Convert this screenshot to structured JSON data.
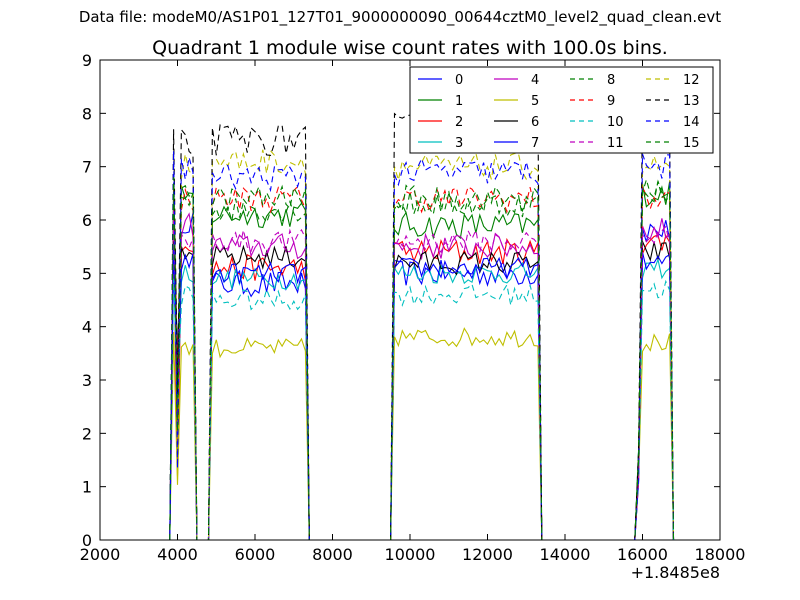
{
  "header": {
    "data_file": "Data file: modeM0/AS1P01_127T01_9000000090_00644cztM0_level2_quad_clean.evt"
  },
  "chart_data": {
    "type": "line",
    "title": "Quadrant 1 module wise count rates with 100.0s bins.",
    "xlabel": "",
    "ylabel": "",
    "xlim": [
      2000,
      18000
    ],
    "ylim": [
      0,
      9
    ],
    "x_offset_label": "+1.8485e8",
    "x_ticks": [
      2000,
      4000,
      6000,
      8000,
      10000,
      12000,
      14000,
      16000,
      18000
    ],
    "y_ticks": [
      0,
      1,
      2,
      3,
      4,
      5,
      6,
      7,
      8,
      9
    ],
    "legend_location": "top-right",
    "gti_segments": [
      {
        "x": [
          3900,
          4000,
          4100,
          4200,
          4300,
          4400
        ]
      },
      {
        "x": [
          4900,
          5000,
          5100,
          5200,
          5300,
          5400,
          5500,
          5600,
          5700,
          5800,
          5900,
          6000,
          6100,
          6200,
          6300,
          6400,
          6500,
          6600,
          6700,
          6800,
          6900,
          7000,
          7100,
          7200,
          7300
        ]
      },
      {
        "x": [
          9600,
          9700,
          9800,
          9900,
          10000,
          10100,
          10200,
          10300,
          10400,
          10500,
          10600,
          10700,
          10800,
          10900,
          11000,
          11100,
          11200,
          11300,
          11400,
          11500,
          11600,
          11700,
          11800,
          11900,
          12000,
          12100,
          12200,
          12300,
          12400,
          12500,
          12600,
          12700,
          12800,
          12900,
          13000,
          13100,
          13200,
          13300
        ]
      },
      {
        "x": [
          15900,
          16000,
          16100,
          16200,
          16300,
          16400,
          16500,
          16600,
          16700
        ]
      }
    ],
    "series": [
      {
        "name": "0",
        "color": "#0000ff",
        "dash": "solid",
        "levels": [
          6.0,
          4.8,
          5.0,
          4.8,
          5.8
        ],
        "noise": 0.25
      },
      {
        "name": "1",
        "color": "#008000",
        "dash": "solid",
        "levels": [
          6.4,
          6.1,
          5.9,
          6.0,
          6.5
        ],
        "noise": 0.25
      },
      {
        "name": "2",
        "color": "#ff0000",
        "dash": "solid",
        "levels": [
          5.6,
          5.1,
          5.4,
          5.1,
          5.6
        ],
        "noise": 0.25
      },
      {
        "name": "3",
        "color": "#00bfbf",
        "dash": "solid",
        "levels": [
          5.0,
          4.9,
          5.0,
          4.7,
          5.1
        ],
        "noise": 0.2
      },
      {
        "name": "4",
        "color": "#bf00bf",
        "dash": "solid",
        "levels": [
          5.9,
          5.5,
          5.5,
          5.4,
          5.8
        ],
        "noise": 0.25
      },
      {
        "name": "5",
        "color": "#bfbf00",
        "dash": "solid",
        "levels": [
          3.6,
          3.6,
          3.8,
          3.6,
          3.7
        ],
        "noise": 0.18
      },
      {
        "name": "6",
        "color": "#000000",
        "dash": "solid",
        "levels": [
          5.3,
          5.3,
          5.2,
          5.2,
          5.4
        ],
        "noise": 0.22
      },
      {
        "name": "7",
        "color": "#0000ff",
        "dash": "solid",
        "levels": [
          5.2,
          5.0,
          5.1,
          5.0,
          5.2
        ],
        "noise": 0.2
      },
      {
        "name": "8",
        "color": "#008000",
        "dash": "dashed",
        "levels": [
          6.6,
          6.2,
          6.3,
          6.2,
          6.6
        ],
        "noise": 0.25
      },
      {
        "name": "9",
        "color": "#ff0000",
        "dash": "dashed",
        "levels": [
          6.4,
          6.4,
          6.4,
          6.3,
          6.4
        ],
        "noise": 0.25
      },
      {
        "name": "10",
        "color": "#00bfbf",
        "dash": "dashed",
        "levels": [
          4.6,
          4.5,
          4.6,
          4.5,
          4.7
        ],
        "noise": 0.2
      },
      {
        "name": "11",
        "color": "#bf00bf",
        "dash": "dashed",
        "levels": [
          5.6,
          5.6,
          5.6,
          5.5,
          5.7
        ],
        "noise": 0.22
      },
      {
        "name": "12",
        "color": "#bfbf00",
        "dash": "dashed",
        "levels": [
          7.0,
          7.1,
          7.0,
          6.9,
          7.0
        ],
        "noise": 0.25
      },
      {
        "name": "13",
        "color": "#000000",
        "dash": "dashed",
        "levels": [
          7.4,
          7.5,
          7.7,
          7.6,
          7.8
        ],
        "noise": 0.3
      },
      {
        "name": "14",
        "color": "#0000ff",
        "dash": "dashed",
        "levels": [
          7.0,
          6.8,
          6.9,
          6.8,
          7.0
        ],
        "noise": 0.25
      },
      {
        "name": "15",
        "color": "#008000",
        "dash": "dashed",
        "levels": [
          6.5,
          6.4,
          6.4,
          6.3,
          6.5
        ],
        "noise": 0.25
      }
    ]
  }
}
